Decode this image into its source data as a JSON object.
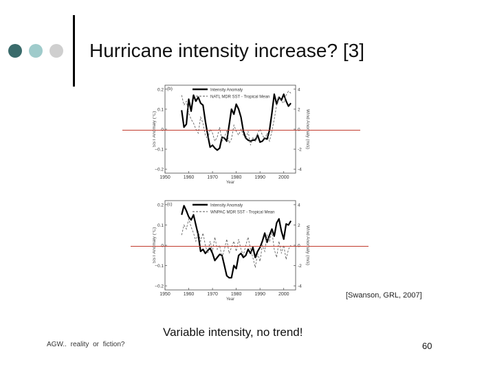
{
  "slide": {
    "title": "Hurricane intensity increase? [3]",
    "caption": "[Swanson, GRL, 2007]",
    "tagline": "Variable intensity, no trend!",
    "footer_left": "AGW.. reality or fiction?",
    "page_number": "60"
  },
  "colors": {
    "dot_1": "#3a6b6b",
    "dot_2": "#9fcbcb",
    "dot_3": "#cfcfcf",
    "reference_line": "#c0392b"
  },
  "chart_data": [
    {
      "panel": "(b)",
      "type": "line",
      "xlabel": "Year",
      "ylabel": "SST Anomaly (°C)",
      "y2label": "Wind Anomaly (m/s)",
      "x_ticks": [
        "1950",
        "1960",
        "1970",
        "1980",
        "1990",
        "2000"
      ],
      "y_ticks": [
        "0.2",
        "0.1",
        "0",
        "−0.1",
        "−0.2"
      ],
      "y2_ticks": [
        "4",
        "2",
        "0",
        "-2",
        "-4"
      ],
      "xlim": [
        1950,
        2005
      ],
      "ylim": [
        -0.22,
        0.22
      ],
      "y2lim": [
        -4.4,
        4.4
      ],
      "legend": [
        "Intensity Anomaly",
        "NATL MDR SST - Tropical Mean"
      ],
      "x": [
        1957,
        1958,
        1959,
        1960,
        1961,
        1962,
        1963,
        1964,
        1965,
        1966,
        1967,
        1968,
        1969,
        1970,
        1971,
        1972,
        1973,
        1974,
        1975,
        1976,
        1977,
        1978,
        1979,
        1980,
        1981,
        1982,
        1983,
        1984,
        1985,
        1986,
        1987,
        1988,
        1989,
        1990,
        1991,
        1992,
        1993,
        1994,
        1995,
        1996,
        1997,
        1998,
        1999,
        2000,
        2001,
        2002,
        2003
      ],
      "series": [
        {
          "name": "Intensity Anomaly",
          "axis": "right",
          "style": "solid",
          "values": [
            1.9,
            0.2,
            0.5,
            3.0,
            1.8,
            3.4,
            2.8,
            3.2,
            2.6,
            2.4,
            0.8,
            -0.6,
            -1.8,
            -1.6,
            -1.9,
            -2.1,
            -1.9,
            -0.8,
            -0.9,
            -1.2,
            0.4,
            2.0,
            1.5,
            2.5,
            2.0,
            1.2,
            -0.2,
            -0.9,
            -1.1,
            -1.2,
            -1.1,
            -1.1,
            -0.6,
            -1.3,
            -1.2,
            -0.9,
            -1.0,
            -0.1,
            1.6,
            3.5,
            2.5,
            3.2,
            2.9,
            3.5,
            2.8,
            2.3,
            2.6
          ]
        },
        {
          "name": "NATL MDR SST - Tropical Mean",
          "axis": "left",
          "style": "dashed",
          "values": [
            0.17,
            0.12,
            0.14,
            0.08,
            0.05,
            0.03,
            0.0,
            -0.02,
            0.06,
            0.03,
            -0.03,
            -0.05,
            0.0,
            -0.02,
            -0.06,
            -0.04,
            0.01,
            -0.06,
            -0.04,
            -0.01,
            -0.07,
            -0.05,
            0.02,
            -0.01,
            -0.03,
            0.0,
            -0.03,
            -0.05,
            -0.01,
            -0.08,
            -0.04,
            -0.06,
            -0.02,
            0.0,
            -0.03,
            -0.05,
            -0.02,
            -0.06,
            -0.01,
            0.05,
            0.12,
            0.16,
            0.14,
            0.13,
            0.17,
            0.19,
            0.18
          ]
        }
      ]
    },
    {
      "panel": "(c)",
      "type": "line",
      "xlabel": "Year",
      "ylabel": "SST Anomaly (°C)",
      "y2label": "Wind Anomaly (m/s)",
      "x_ticks": [
        "1950",
        "1960",
        "1970",
        "1980",
        "1990",
        "2000"
      ],
      "y_ticks": [
        "0.2",
        "0.1",
        "0",
        "−0.1",
        "−0.2"
      ],
      "y2_ticks": [
        "4",
        "2",
        "0",
        "-2",
        "-4"
      ],
      "xlim": [
        1950,
        2005
      ],
      "ylim": [
        -0.22,
        0.22
      ],
      "y2lim": [
        -4.4,
        4.4
      ],
      "legend": [
        "Intensity Anomaly",
        "WNPAC MDR SST - Tropical Mean"
      ],
      "x": [
        1957,
        1958,
        1959,
        1960,
        1961,
        1962,
        1963,
        1964,
        1965,
        1966,
        1967,
        1968,
        1969,
        1970,
        1971,
        1972,
        1973,
        1974,
        1975,
        1976,
        1977,
        1978,
        1979,
        1980,
        1981,
        1982,
        1983,
        1984,
        1985,
        1986,
        1987,
        1988,
        1989,
        1990,
        1991,
        1992,
        1993,
        1994,
        1995,
        1996,
        1997,
        1998,
        1999,
        2000,
        2001,
        2002,
        2003
      ],
      "series": [
        {
          "name": "Intensity Anomaly",
          "axis": "right",
          "style": "solid",
          "values": [
            3.0,
            3.9,
            3.4,
            2.8,
            2.5,
            3.0,
            2.0,
            1.0,
            -0.6,
            -0.4,
            -0.8,
            -0.5,
            -0.3,
            -0.8,
            -1.5,
            -1.2,
            -0.9,
            -1.0,
            -2.0,
            -3.0,
            -3.2,
            -3.2,
            -2.0,
            -2.3,
            -1.0,
            -0.8,
            -1.2,
            -1.0,
            -0.4,
            -0.8,
            -0.2,
            -1.2,
            -0.6,
            -0.2,
            0.4,
            1.2,
            0.3,
            1.0,
            1.6,
            0.9,
            2.2,
            2.6,
            1.4,
            0.6,
            2.1,
            2.0,
            2.4
          ]
        },
        {
          "name": "WNPAC MDR SST - Tropical Mean",
          "axis": "left",
          "style": "dashed",
          "values": [
            0.05,
            0.1,
            0.08,
            0.13,
            0.09,
            0.06,
            0.02,
            0.07,
            0.02,
            0.06,
            0.0,
            -0.04,
            0.02,
            -0.03,
            0.04,
            -0.02,
            0.0,
            -0.06,
            -0.02,
            0.03,
            -0.04,
            -0.01,
            0.02,
            -0.03,
            0.03,
            -0.02,
            -0.05,
            0.0,
            0.04,
            -0.02,
            -0.06,
            -0.11,
            -0.04,
            -0.08,
            0.0,
            -0.03,
            0.05,
            0.02,
            0.07,
            -0.02,
            -0.06,
            0.02,
            -0.04,
            0.0,
            -0.07,
            -0.02,
            0.0
          ]
        }
      ]
    }
  ]
}
